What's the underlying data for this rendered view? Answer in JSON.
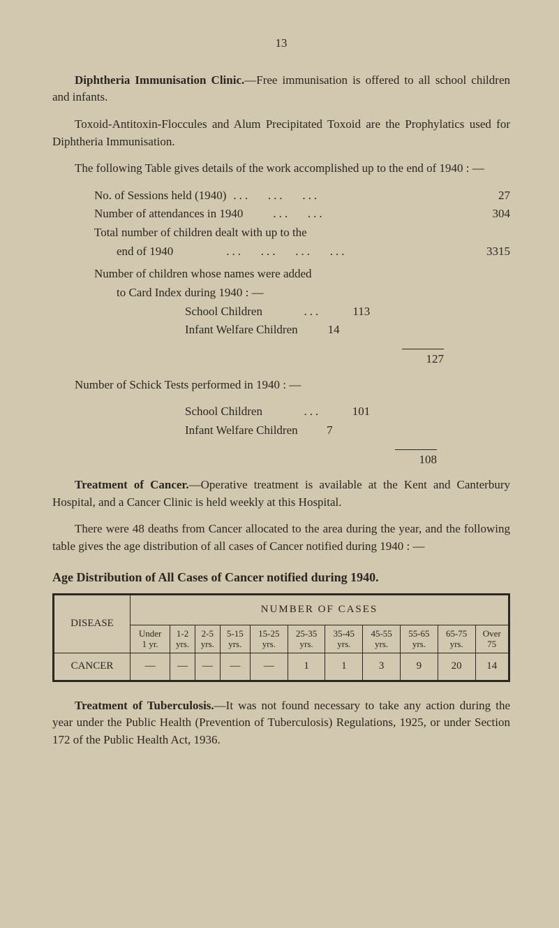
{
  "page_number": "13",
  "p1_lead": "Diphtheria Immunisation Clinic.",
  "p1_rest": "—Free immunisation is offered to all school children and infants.",
  "p2": "Toxoid-Antitoxin-Floccules and Alum Precipitated Toxoid are the Prophylatics used for Diphtheria Immunisation.",
  "p3": "The following Table gives details of the work accomplished up to the end of 1940 : —",
  "stat1_label": "No. of Sessions held (1940)",
  "stat1_val": "27",
  "stat2_label": "Number of attendances in 1940",
  "stat2_val": "304",
  "stat3a": "Total number of children dealt with up to the",
  "stat3b": "end of 1940",
  "stat3_val": "3315",
  "stat4a": "Number of children whose names were added",
  "stat4b": "to Card Index during 1940 : —",
  "sub1_label": "School Children",
  "sub1_val": "113",
  "sub2_label": "Infant Welfare Children",
  "sub2_val": "14",
  "subtotal1": "127",
  "p4": "Number of Schick Tests performed in 1940 : —",
  "sub3_label": "School Children",
  "sub3_val": "101",
  "sub4_label": "Infant Welfare Children",
  "sub4_val": "7",
  "subtotal2": "108",
  "p5_lead": "Treatment of Cancer.",
  "p5_rest": "—Operative treatment is available at the Kent and Canterbury Hospital, and a Cancer Clinic is held weekly at this Hospital.",
  "p6": "There were 48 deaths from Cancer allocated to the area during the year, and the following table gives the age distribution of all cases of Cancer notified during 1940 : —",
  "table_title": "Age Distribution of All Cases of Cancer notified during 1940.",
  "table": {
    "disease_header": "DISEASE",
    "cases_header": "NUMBER OF CASES",
    "age_cols": [
      "Under\n1 yr.",
      "1-2\nyrs.",
      "2-5\nyrs.",
      "5-15\nyrs.",
      "15-25\nyrs.",
      "25-35\nyrs.",
      "35-45\nyrs.",
      "45-55\nyrs.",
      "55-65\nyrs.",
      "65-75\nyrs.",
      "Over\n75"
    ],
    "row_label": "CANCER",
    "row_data": [
      "—",
      "—",
      "—",
      "—",
      "—",
      "1",
      "1",
      "3",
      "9",
      "20",
      "14"
    ]
  },
  "p7_lead": "Treatment of Tuberculosis.",
  "p7_rest": "—It was not found necessary to take any action during the year under the Public Health (Prevention of Tuberculosis) Regulations, 1925, or under Section 172 of the Public Health Act, 1936.",
  "colors": {
    "bg": "#d2c8b0",
    "text": "#2a2620"
  }
}
